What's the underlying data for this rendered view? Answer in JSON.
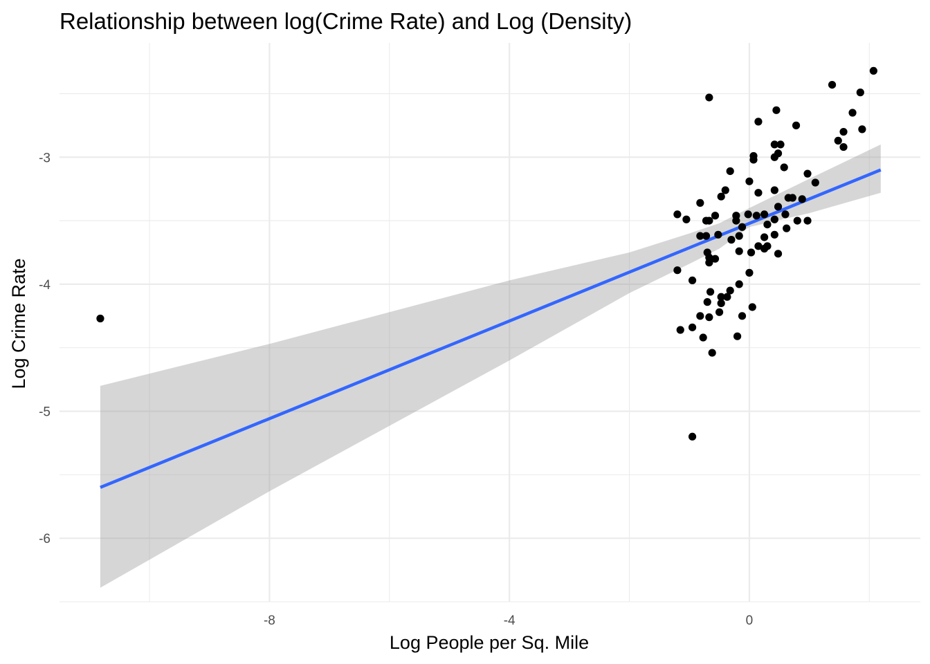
{
  "chart_data": {
    "type": "scatter",
    "title": "Relationship between log(Crime Rate) and Log (Density)",
    "xlabel": "Log People per Sq. Mile",
    "ylabel": "Log Crime Rate",
    "xlim": [
      -11.5,
      2.85
    ],
    "ylim": [
      -6.5,
      -2.1
    ],
    "x_ticks": [
      -8,
      -4,
      0
    ],
    "x_tick_labels": [
      "-8",
      "-4",
      "0"
    ],
    "y_ticks": [
      -6,
      -5,
      -4,
      -3
    ],
    "y_tick_labels": [
      "-6",
      "-5",
      "-4",
      "-3"
    ],
    "grid": true,
    "colors": {
      "points": "#000000",
      "line": "#3366ff",
      "band": "#999999",
      "grid": "#ebebeb"
    },
    "points": [
      {
        "x": -10.82,
        "y": -4.27
      },
      {
        "x": -0.95,
        "y": -5.2
      },
      {
        "x": -0.67,
        "y": -2.53
      },
      {
        "x": 0.45,
        "y": -2.63
      },
      {
        "x": 0.15,
        "y": -2.72
      },
      {
        "x": 0.78,
        "y": -2.75
      },
      {
        "x": 1.38,
        "y": -2.43
      },
      {
        "x": 2.07,
        "y": -2.32
      },
      {
        "x": 1.85,
        "y": -2.49
      },
      {
        "x": 1.72,
        "y": -2.65
      },
      {
        "x": 1.88,
        "y": -2.78
      },
      {
        "x": 1.57,
        "y": -2.8
      },
      {
        "x": 1.48,
        "y": -2.87
      },
      {
        "x": 1.57,
        "y": -2.92
      },
      {
        "x": 0.42,
        "y": -2.9
      },
      {
        "x": 0.52,
        "y": -2.9
      },
      {
        "x": 0.07,
        "y": -2.99
      },
      {
        "x": 0.07,
        "y": -3.02
      },
      {
        "x": 0.42,
        "y": -3.0
      },
      {
        "x": 0.48,
        "y": -2.97
      },
      {
        "x": 0.58,
        "y": -3.08
      },
      {
        "x": -0.32,
        "y": -3.11
      },
      {
        "x": 0.97,
        "y": -3.13
      },
      {
        "x": 1.1,
        "y": -3.2
      },
      {
        "x": 0.0,
        "y": -3.19
      },
      {
        "x": 0.15,
        "y": -3.28
      },
      {
        "x": 0.42,
        "y": -3.26
      },
      {
        "x": -0.4,
        "y": -3.26
      },
      {
        "x": -0.47,
        "y": -3.31
      },
      {
        "x": 0.65,
        "y": -3.32
      },
      {
        "x": 0.72,
        "y": -3.32
      },
      {
        "x": 0.88,
        "y": -3.33
      },
      {
        "x": -0.82,
        "y": -3.36
      },
      {
        "x": 0.48,
        "y": -3.39
      },
      {
        "x": -1.2,
        "y": -3.45
      },
      {
        "x": -1.05,
        "y": -3.49
      },
      {
        "x": -0.72,
        "y": -3.5
      },
      {
        "x": -0.67,
        "y": -3.5
      },
      {
        "x": -0.57,
        "y": -3.46
      },
      {
        "x": -0.22,
        "y": -3.46
      },
      {
        "x": -0.02,
        "y": -3.45
      },
      {
        "x": 0.12,
        "y": -3.46
      },
      {
        "x": 0.25,
        "y": -3.45
      },
      {
        "x": 0.6,
        "y": -3.45
      },
      {
        "x": -0.22,
        "y": -3.5
      },
      {
        "x": 0.42,
        "y": -3.49
      },
      {
        "x": 0.8,
        "y": -3.5
      },
      {
        "x": 0.97,
        "y": -3.5
      },
      {
        "x": -0.12,
        "y": -3.55
      },
      {
        "x": 0.3,
        "y": -3.53
      },
      {
        "x": 0.62,
        "y": -3.56
      },
      {
        "x": -0.82,
        "y": -3.62
      },
      {
        "x": -0.72,
        "y": -3.62
      },
      {
        "x": -0.52,
        "y": -3.61
      },
      {
        "x": -0.17,
        "y": -3.62
      },
      {
        "x": 0.42,
        "y": -3.61
      },
      {
        "x": 0.25,
        "y": -3.63
      },
      {
        "x": -0.3,
        "y": -3.65
      },
      {
        "x": 0.15,
        "y": -3.7
      },
      {
        "x": 0.3,
        "y": -3.7
      },
      {
        "x": 0.25,
        "y": -3.72
      },
      {
        "x": -0.7,
        "y": -3.75
      },
      {
        "x": -0.17,
        "y": -3.74
      },
      {
        "x": 0.03,
        "y": -3.75
      },
      {
        "x": 0.48,
        "y": -3.76
      },
      {
        "x": -0.67,
        "y": -3.79
      },
      {
        "x": -0.57,
        "y": -3.8
      },
      {
        "x": -0.67,
        "y": -3.83
      },
      {
        "x": -1.2,
        "y": -3.89
      },
      {
        "x": 0.0,
        "y": -3.91
      },
      {
        "x": -0.95,
        "y": -3.97
      },
      {
        "x": -0.17,
        "y": -4.0
      },
      {
        "x": -0.65,
        "y": -4.06
      },
      {
        "x": -0.32,
        "y": -4.05
      },
      {
        "x": -0.47,
        "y": -4.1
      },
      {
        "x": -0.37,
        "y": -4.1
      },
      {
        "x": -0.7,
        "y": -4.14
      },
      {
        "x": -0.47,
        "y": -4.15
      },
      {
        "x": 0.05,
        "y": -4.18
      },
      {
        "x": -0.5,
        "y": -4.22
      },
      {
        "x": -0.82,
        "y": -4.25
      },
      {
        "x": -0.67,
        "y": -4.26
      },
      {
        "x": -0.12,
        "y": -4.25
      },
      {
        "x": -1.15,
        "y": -4.36
      },
      {
        "x": -0.95,
        "y": -4.34
      },
      {
        "x": -0.2,
        "y": -4.41
      },
      {
        "x": -0.77,
        "y": -4.42
      },
      {
        "x": -0.62,
        "y": -4.54
      }
    ],
    "fit": {
      "x": [
        -10.82,
        2.19
      ],
      "y": [
        -5.6,
        -3.1
      ],
      "ci_x": [
        -10.82,
        -8,
        -4,
        -2,
        -1,
        -0.5,
        0,
        1,
        2.19
      ],
      "ci_lower": [
        -6.39,
        -5.63,
        -4.6,
        -4.07,
        -3.84,
        -3.72,
        -3.55,
        -3.44,
        -3.28
      ],
      "ci_upper": [
        -4.8,
        -4.47,
        -3.97,
        -3.75,
        -3.6,
        -3.52,
        -3.4,
        -3.17,
        -2.9
      ]
    }
  }
}
